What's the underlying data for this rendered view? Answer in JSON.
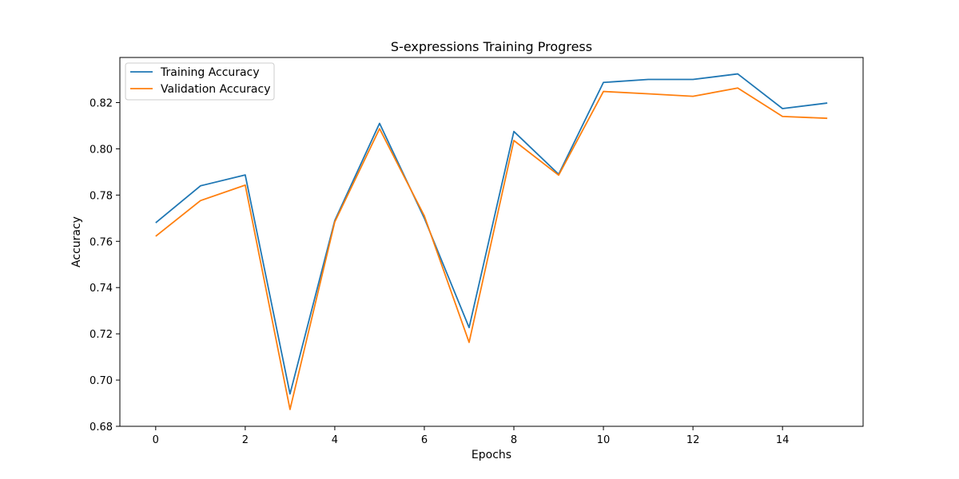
{
  "chart_data": {
    "type": "line",
    "title": "S-expressions Training Progress",
    "xlabel": "Epochs",
    "ylabel": "Accuracy",
    "x": [
      0,
      1,
      2,
      3,
      4,
      5,
      6,
      7,
      8,
      9,
      10,
      11,
      12,
      13,
      14,
      15
    ],
    "series": [
      {
        "name": "Training Accuracy",
        "color": "#1f77b4",
        "values": [
          0.768,
          0.784,
          0.7887,
          0.694,
          0.769,
          0.811,
          0.77,
          0.7227,
          0.8075,
          0.789,
          0.8287,
          0.83,
          0.83,
          0.8324,
          0.8174,
          0.8198
        ]
      },
      {
        "name": "Validation Accuracy",
        "color": "#ff7f0e",
        "values": [
          0.7622,
          0.7776,
          0.7843,
          0.6873,
          0.7684,
          0.8087,
          0.771,
          0.7163,
          0.8036,
          0.7886,
          0.8248,
          0.8238,
          0.8227,
          0.8263,
          0.814,
          0.8132
        ]
      }
    ],
    "xlim": [
      -0.8,
      15.8
    ],
    "ylim": [
      0.68,
      0.8395
    ],
    "xticks": [
      "0",
      "2",
      "4",
      "6",
      "8",
      "10",
      "12",
      "14"
    ],
    "yticks": [
      "0.68",
      "0.70",
      "0.72",
      "0.74",
      "0.76",
      "0.78",
      "0.80",
      "0.82"
    ],
    "grid": false,
    "legend_position": "top-left"
  }
}
